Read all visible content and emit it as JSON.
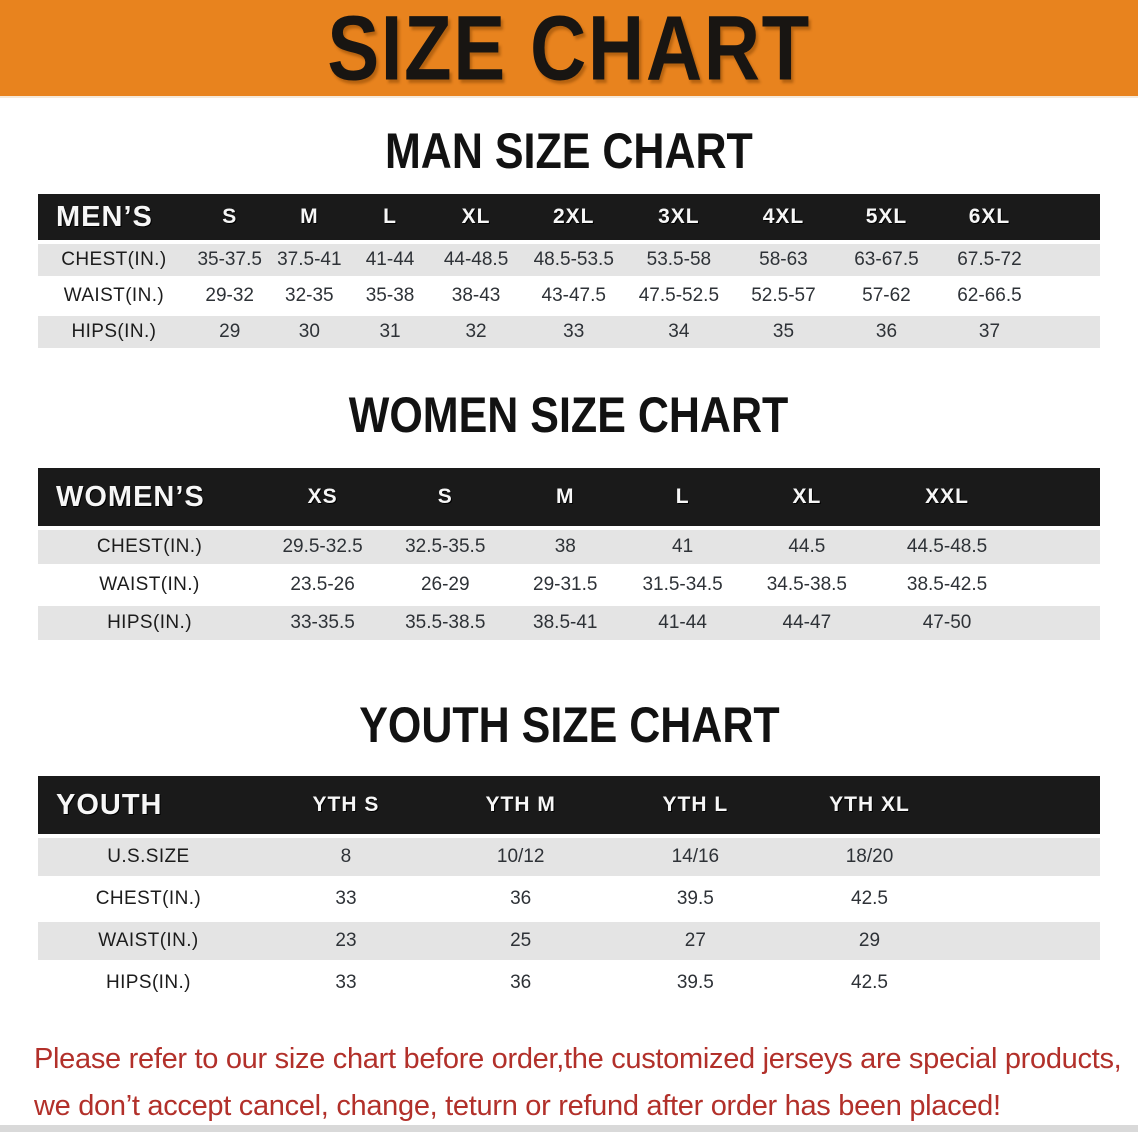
{
  "colors": {
    "banner_bg": "#e8831e",
    "header_bar": "#1a1a1a",
    "row_alt": "#e4e4e4",
    "notice_text": "#b2302a"
  },
  "banner": {
    "title": "SIZE CHART"
  },
  "sections": {
    "men": {
      "title": "MAN SIZE CHART",
      "table": {
        "header": [
          "MEN’S",
          "S",
          "M",
          "L",
          "XL",
          "2XL",
          "3XL",
          "4XL",
          "5XL",
          "6XL"
        ],
        "rows": [
          {
            "label": "CHEST(IN.)",
            "values": [
              "35-37.5",
              "37.5-41",
              "41-44",
              "44-48.5",
              "48.5-53.5",
              "53.5-58",
              "58-63",
              "63-67.5",
              "67.5-72"
            ]
          },
          {
            "label": "WAIST(IN.)",
            "values": [
              "29-32",
              "32-35",
              "35-38",
              "38-43",
              "43-47.5",
              "47.5-52.5",
              "52.5-57",
              "57-62",
              "62-66.5"
            ]
          },
          {
            "label": "HIPS(IN.)",
            "values": [
              "29",
              "30",
              "31",
              "32",
              "33",
              "34",
              "35",
              "36",
              "37"
            ]
          }
        ]
      }
    },
    "women": {
      "title": "WOMEN SIZE CHART",
      "table": {
        "header": [
          "WOMEN’S",
          "XS",
          "S",
          "M",
          "L",
          "XL",
          "XXL"
        ],
        "rows": [
          {
            "label": "CHEST(IN.)",
            "values": [
              "29.5-32.5",
              "32.5-35.5",
              "38",
              "41",
              "44.5",
              "44.5-48.5"
            ]
          },
          {
            "label": "WAIST(IN.)",
            "values": [
              "23.5-26",
              "26-29",
              "29-31.5",
              "31.5-34.5",
              "34.5-38.5",
              "38.5-42.5"
            ]
          },
          {
            "label": "HIPS(IN.)",
            "values": [
              "33-35.5",
              "35.5-38.5",
              "38.5-41",
              "41-44",
              "44-47",
              "47-50"
            ]
          }
        ]
      }
    },
    "youth": {
      "title": "YOUTH SIZE CHART",
      "table": {
        "header": [
          "YOUTH",
          "YTH S",
          "YTH M",
          "YTH L",
          "YTH XL"
        ],
        "rows": [
          {
            "label": "U.S.SIZE",
            "values": [
              "8",
              "10/12",
              "14/16",
              "18/20"
            ]
          },
          {
            "label": "CHEST(IN.)",
            "values": [
              "33",
              "36",
              "39.5",
              "42.5"
            ]
          },
          {
            "label": "WAIST(IN.)",
            "values": [
              "23",
              "25",
              "27",
              "29"
            ]
          },
          {
            "label": "HIPS(IN.)",
            "values": [
              "33",
              "36",
              "39.5",
              "42.5"
            ]
          }
        ]
      }
    }
  },
  "notice": {
    "line1": "Please refer to our size chart before order,the customized jerseys are special products,",
    "line2": "we don’t accept cancel, change, teturn or refund after order has been placed!"
  }
}
